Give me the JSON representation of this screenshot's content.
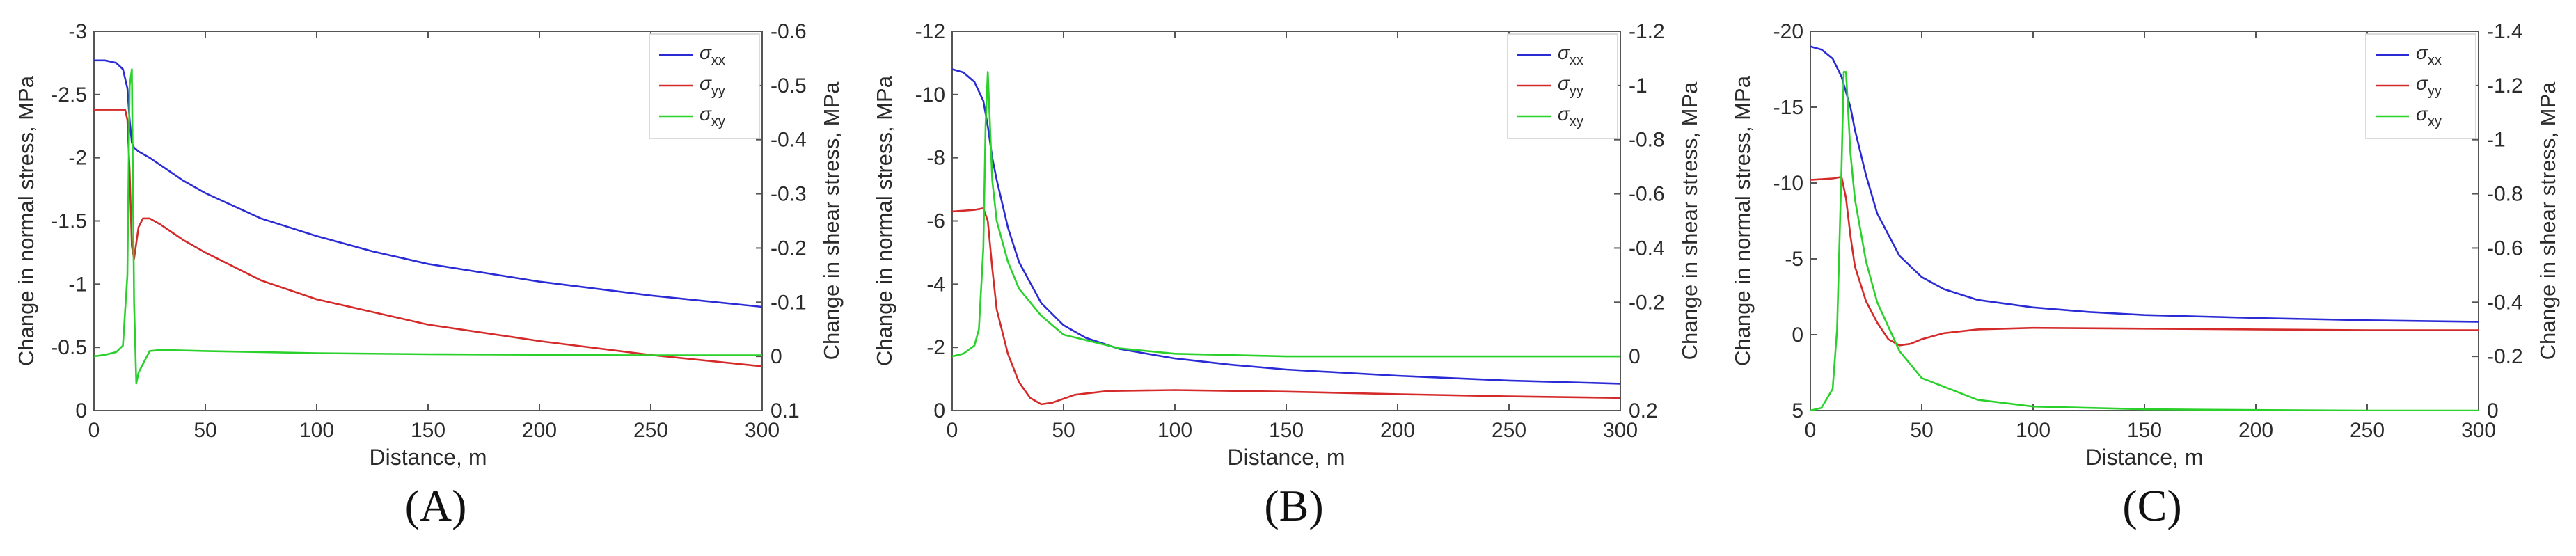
{
  "chart_data": [
    {
      "type": "line",
      "panel_label": "(A)",
      "xlabel": "Distance, m",
      "ylabel_left": "Change in normal stress, MPa",
      "ylabel_right": "Change in shear stress, MPa",
      "xlim": [
        0,
        300
      ],
      "ylim_left": [
        0,
        -3
      ],
      "ylim_right": [
        0.1,
        -0.6
      ],
      "x_ticks": [
        "0",
        "50",
        "100",
        "150",
        "200",
        "250",
        "300"
      ],
      "y_ticks_left": [
        {
          "v": -3,
          "t": "-3"
        },
        {
          "v": -2.5,
          "t": "-2.5"
        },
        {
          "v": -2,
          "t": "-2"
        },
        {
          "v": -1.5,
          "t": "-1.5"
        },
        {
          "v": -1,
          "t": "-1"
        },
        {
          "v": -0.5,
          "t": "-0.5"
        },
        {
          "v": 0,
          "t": "0"
        }
      ],
      "y_ticks_right": [
        {
          "v": -0.6,
          "t": "-0.6"
        },
        {
          "v": -0.5,
          "t": "-0.5"
        },
        {
          "v": -0.4,
          "t": "-0.4"
        },
        {
          "v": -0.3,
          "t": "-0.3"
        },
        {
          "v": -0.2,
          "t": "-0.2"
        },
        {
          "v": -0.1,
          "t": "-0.1"
        },
        {
          "v": 0,
          "t": "0"
        },
        {
          "v": 0.1,
          "t": "0.1"
        }
      ],
      "grid": false,
      "legend_position": "top-right",
      "legend": [
        "σxx",
        "σyy",
        "σxy"
      ],
      "series": [
        {
          "name": "σxx",
          "axis": "left",
          "color": "#2b2bd6",
          "x": [
            0,
            5,
            10,
            13,
            15,
            16,
            17,
            18,
            20,
            25,
            30,
            40,
            50,
            75,
            100,
            125,
            150,
            200,
            250,
            300
          ],
          "y": [
            -2.77,
            -2.77,
            -2.75,
            -2.7,
            -2.55,
            -2.3,
            -2.12,
            -2.08,
            -2.05,
            -2.0,
            -1.94,
            -1.82,
            -1.72,
            -1.52,
            -1.38,
            -1.26,
            -1.16,
            -1.02,
            -0.91,
            -0.82
          ]
        },
        {
          "name": "σyy",
          "axis": "left",
          "color": "#d42a2a",
          "x": [
            0,
            10,
            14,
            15,
            16,
            17,
            18,
            20,
            22,
            25,
            30,
            40,
            50,
            75,
            100,
            150,
            200,
            250,
            300
          ],
          "y": [
            -2.38,
            -2.38,
            -2.38,
            -2.3,
            -1.9,
            -1.3,
            -1.2,
            -1.45,
            -1.52,
            -1.52,
            -1.47,
            -1.35,
            -1.25,
            -1.03,
            -0.88,
            -0.68,
            -0.55,
            -0.44,
            -0.35
          ]
        },
        {
          "name": "σxy",
          "axis": "right",
          "color": "#2bd12b",
          "x": [
            0,
            5,
            10,
            13,
            15,
            16,
            17,
            18,
            19,
            20,
            25,
            30,
            50,
            100,
            150,
            200,
            250,
            300
          ],
          "y": [
            0.0,
            -0.003,
            -0.008,
            -0.02,
            -0.15,
            -0.5,
            -0.53,
            -0.1,
            0.05,
            0.03,
            -0.01,
            -0.012,
            -0.01,
            -0.006,
            -0.004,
            -0.003,
            -0.002,
            -0.002
          ]
        }
      ]
    },
    {
      "type": "line",
      "panel_label": "(B)",
      "xlabel": "Distance, m",
      "ylabel_left": "Change in normal stress, MPa",
      "ylabel_right": "Change in shear stress, MPa",
      "xlim": [
        0,
        300
      ],
      "ylim_left": [
        0,
        -12
      ],
      "ylim_right": [
        0.2,
        -1.2
      ],
      "x_ticks": [
        "0",
        "50",
        "100",
        "150",
        "200",
        "250",
        "300"
      ],
      "y_ticks_left": [
        {
          "v": -12,
          "t": "-12"
        },
        {
          "v": -10,
          "t": "-10"
        },
        {
          "v": -8,
          "t": "-8"
        },
        {
          "v": -6,
          "t": "-6"
        },
        {
          "v": -4,
          "t": "-4"
        },
        {
          "v": -2,
          "t": "-2"
        },
        {
          "v": 0,
          "t": "0"
        }
      ],
      "y_ticks_right": [
        {
          "v": -1.2,
          "t": "-1.2"
        },
        {
          "v": -1,
          "t": "-1"
        },
        {
          "v": -0.8,
          "t": "-0.8"
        },
        {
          "v": -0.6,
          "t": "-0.6"
        },
        {
          "v": -0.4,
          "t": "-0.4"
        },
        {
          "v": -0.2,
          "t": "-0.2"
        },
        {
          "v": 0,
          "t": "0"
        },
        {
          "v": 0.2,
          "t": "0.2"
        }
      ],
      "grid": false,
      "legend_position": "top-right",
      "legend": [
        "σxx",
        "σyy",
        "σxy"
      ],
      "series": [
        {
          "name": "σxx",
          "axis": "left",
          "color": "#2b2bd6",
          "x": [
            0,
            5,
            10,
            14,
            16,
            18,
            20,
            25,
            30,
            40,
            50,
            60,
            75,
            100,
            125,
            150,
            200,
            250,
            300
          ],
          "y": [
            -10.8,
            -10.7,
            -10.4,
            -9.8,
            -9.0,
            -8.0,
            -7.3,
            -5.8,
            -4.7,
            -3.4,
            -2.7,
            -2.3,
            -1.95,
            -1.65,
            -1.45,
            -1.3,
            -1.1,
            -0.95,
            -0.85
          ]
        },
        {
          "name": "σyy",
          "axis": "left",
          "color": "#d42a2a",
          "x": [
            0,
            10,
            14,
            16,
            18,
            20,
            25,
            30,
            35,
            40,
            45,
            55,
            70,
            100,
            150,
            200,
            250,
            300
          ],
          "y": [
            -6.3,
            -6.35,
            -6.4,
            -6.0,
            -4.5,
            -3.2,
            -1.8,
            -0.9,
            -0.4,
            -0.2,
            -0.25,
            -0.5,
            -0.62,
            -0.65,
            -0.6,
            -0.52,
            -0.45,
            -0.4
          ]
        },
        {
          "name": "σxy",
          "axis": "right",
          "color": "#2bd12b",
          "x": [
            0,
            5,
            10,
            12,
            14,
            15,
            16,
            17,
            18,
            20,
            25,
            30,
            40,
            50,
            75,
            100,
            150,
            200,
            250,
            300
          ],
          "y": [
            0.0,
            -0.01,
            -0.04,
            -0.1,
            -0.4,
            -0.85,
            -1.05,
            -0.85,
            -0.65,
            -0.5,
            -0.35,
            -0.25,
            -0.15,
            -0.08,
            -0.03,
            -0.01,
            0.0,
            0.0,
            0.0,
            0.0
          ]
        }
      ]
    },
    {
      "type": "line",
      "panel_label": "(C)",
      "xlabel": "Distance, m",
      "ylabel_left": "Change in normal stress, MPa",
      "ylabel_right": "Change in shear stress, MPa",
      "xlim": [
        0,
        300
      ],
      "ylim_left": [
        5,
        -20
      ],
      "ylim_right": [
        0,
        -1.4
      ],
      "x_ticks": [
        "0",
        "50",
        "100",
        "150",
        "200",
        "250",
        "300"
      ],
      "y_ticks_left": [
        {
          "v": -20,
          "t": "-20"
        },
        {
          "v": -15,
          "t": "-15"
        },
        {
          "v": -10,
          "t": "-10"
        },
        {
          "v": -5,
          "t": "-5"
        },
        {
          "v": 0,
          "t": "0"
        },
        {
          "v": 5,
          "t": "5"
        }
      ],
      "y_ticks_right": [
        {
          "v": -1.4,
          "t": "-1.4"
        },
        {
          "v": -1.2,
          "t": "-1.2"
        },
        {
          "v": -1,
          "t": "-1"
        },
        {
          "v": -0.8,
          "t": "-0.8"
        },
        {
          "v": -0.6,
          "t": "-0.6"
        },
        {
          "v": -0.4,
          "t": "-0.4"
        },
        {
          "v": -0.2,
          "t": "-0.2"
        },
        {
          "v": 0,
          "t": "0"
        }
      ],
      "grid": false,
      "legend_position": "top-right",
      "legend": [
        "σxx",
        "σyy",
        "σxy"
      ],
      "series": [
        {
          "name": "σxx",
          "axis": "left",
          "color": "#2b2bd6",
          "x": [
            0,
            5,
            10,
            14,
            16,
            18,
            20,
            25,
            30,
            40,
            50,
            60,
            75,
            100,
            125,
            150,
            200,
            250,
            300
          ],
          "y": [
            -19.0,
            -18.8,
            -18.2,
            -17.0,
            -16.0,
            -15.0,
            -13.5,
            -10.5,
            -8.0,
            -5.2,
            -3.8,
            -3.0,
            -2.3,
            -1.8,
            -1.5,
            -1.3,
            -1.1,
            -0.95,
            -0.85
          ]
        },
        {
          "name": "σyy",
          "axis": "left",
          "color": "#d42a2a",
          "x": [
            0,
            10,
            14,
            16,
            18,
            20,
            25,
            30,
            35,
            40,
            45,
            50,
            60,
            75,
            100,
            150,
            200,
            250,
            300
          ],
          "y": [
            -10.2,
            -10.3,
            -10.4,
            -9.0,
            -6.5,
            -4.5,
            -2.2,
            -0.8,
            0.3,
            0.7,
            0.6,
            0.3,
            -0.1,
            -0.35,
            -0.45,
            -0.4,
            -0.35,
            -0.3,
            -0.3
          ]
        },
        {
          "name": "σxy",
          "axis": "right",
          "color": "#2bd12b",
          "x": [
            0,
            5,
            10,
            12,
            14,
            15,
            16,
            17,
            18,
            20,
            25,
            30,
            40,
            50,
            75,
            100,
            150,
            200,
            250,
            300
          ],
          "y": [
            0.0,
            -0.01,
            -0.08,
            -0.3,
            -0.9,
            -1.25,
            -1.25,
            -1.1,
            -0.95,
            -0.78,
            -0.55,
            -0.4,
            -0.22,
            -0.12,
            -0.04,
            -0.015,
            -0.005,
            -0.002,
            0.0,
            0.0
          ]
        }
      ]
    }
  ]
}
